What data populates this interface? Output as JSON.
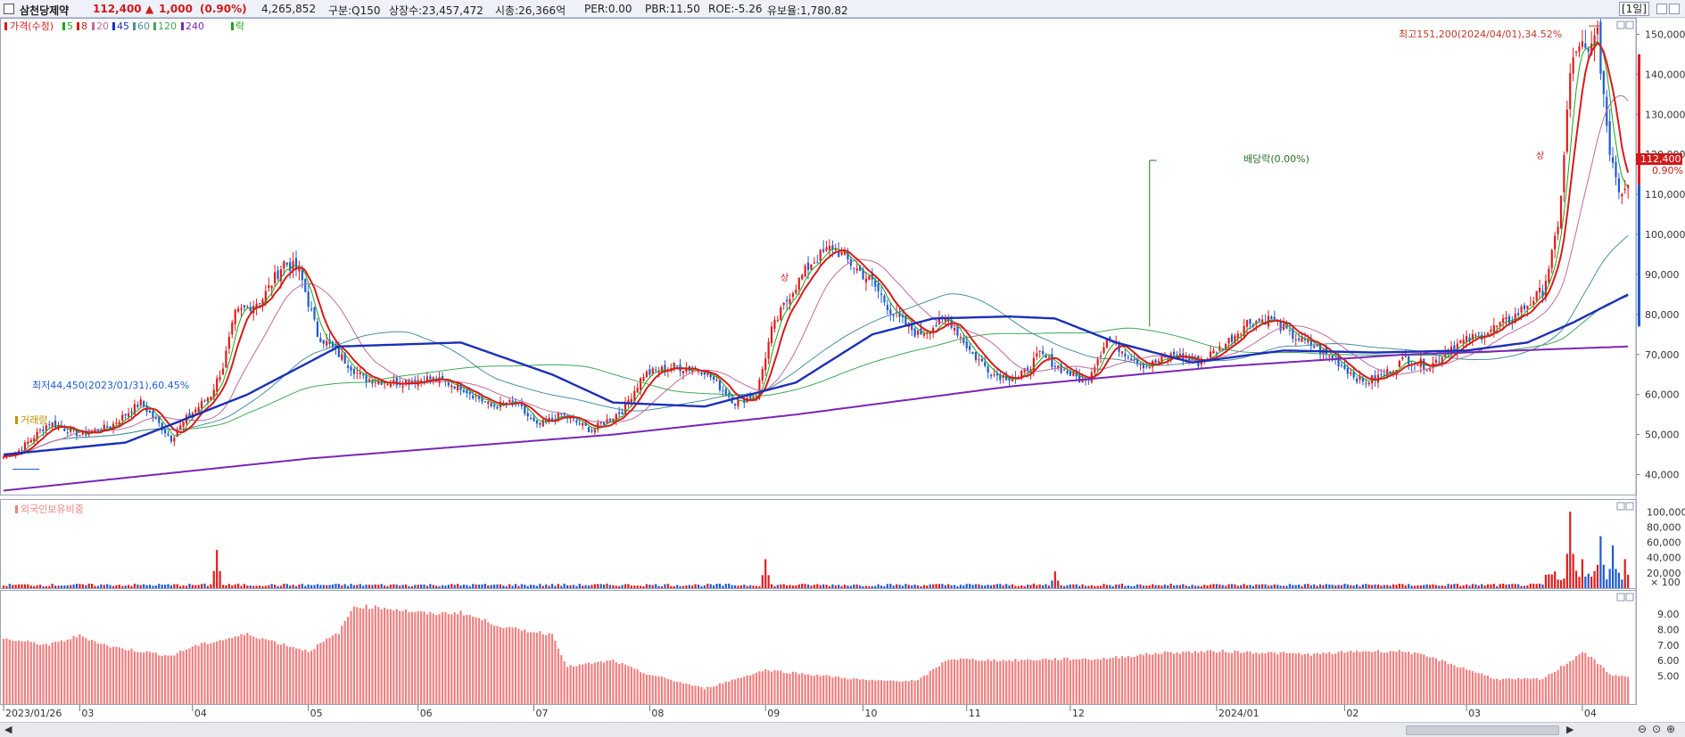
{
  "header": {
    "stock_name": "삼천당제약",
    "price": "112,400",
    "change_arrow": "▲",
    "change": "1,000",
    "change_pct": "(0.90%)",
    "volume": "4,265,852",
    "market": "구분:Q150",
    "shares": "상장수:23,457,472",
    "cap": "시총:26,366억",
    "per": "PER:0.00",
    "pbr": "PBR:11.50",
    "roe": "ROE:-5.26",
    "reserve": "유보율:1,780.82",
    "period": "[1일]"
  },
  "legend": {
    "price": "가격(수정)",
    "ma5": "5",
    "ma8": "8",
    "ma20": "20",
    "ma45": "45",
    "ma60": "60",
    "ma120": "120",
    "ma240": "240",
    "ex": "락",
    "volume": "거래량",
    "foreign": "외국인보유비중"
  },
  "annotations": {
    "high": "최고151,200(2024/04/01),34.52%",
    "low": "최저44,450(2023/01/31),60.45%",
    "dividend": "배당락(0.00%)",
    "limit_up": "상",
    "last_price": "112,400",
    "last_pct": "0.90%"
  },
  "colors": {
    "up": "#e21b1b",
    "down": "#1e5bd4",
    "ma5": "#1aa61a",
    "ma8": "#d81b1b",
    "ma20": "#c06a9e",
    "ma45": "#1b2fb8",
    "ma60": "#4b8fa0",
    "ma120": "#3ea85a",
    "ma240": "#7b26b5",
    "foreign_bar": "#f08080"
  },
  "chart_data": [
    {
      "type": "candlestick",
      "title": "",
      "y_ticks": [
        40000,
        50000,
        60000,
        70000,
        80000,
        90000,
        100000,
        110000,
        120000,
        130000,
        140000,
        150000
      ],
      "y_tick_labels": [
        "40,000",
        "50,000",
        "60,000",
        "70,000",
        "80,000",
        "90,000",
        "100,000",
        "110,000",
        "120,000",
        "130,000",
        "140,000",
        "150,000"
      ],
      "ylim": [
        35000,
        153000
      ],
      "x_labels": [
        "2023/01/26",
        "03",
        "04",
        "05",
        "06",
        "07",
        "08",
        "09",
        "10",
        "11",
        "12",
        "2024/01",
        "02",
        "03",
        "04"
      ],
      "x_label_days": [
        0,
        25,
        62,
        100,
        136,
        174,
        212,
        250,
        282,
        316,
        350,
        398,
        440,
        480,
        518
      ],
      "total_days": 535,
      "price_path": [
        [
          0,
          44500
        ],
        [
          5,
          46000
        ],
        [
          15,
          53000
        ],
        [
          25,
          50000
        ],
        [
          35,
          52000
        ],
        [
          45,
          58000
        ],
        [
          55,
          49000
        ],
        [
          60,
          54000
        ],
        [
          68,
          60000
        ],
        [
          72,
          67000
        ],
        [
          76,
          80000
        ],
        [
          85,
          84000
        ],
        [
          92,
          93000
        ],
        [
          97,
          91000
        ],
        [
          103,
          75000
        ],
        [
          110,
          70000
        ],
        [
          118,
          64000
        ],
        [
          128,
          63000
        ],
        [
          140,
          64000
        ],
        [
          150,
          62000
        ],
        [
          160,
          57000
        ],
        [
          168,
          58000
        ],
        [
          175,
          52000
        ],
        [
          183,
          55000
        ],
        [
          193,
          51000
        ],
        [
          203,
          56000
        ],
        [
          210,
          65000
        ],
        [
          220,
          67000
        ],
        [
          230,
          66000
        ],
        [
          240,
          58000
        ],
        [
          247,
          60000
        ],
        [
          252,
          76000
        ],
        [
          258,
          85000
        ],
        [
          265,
          93000
        ],
        [
          272,
          97000
        ],
        [
          279,
          92000
        ],
        [
          285,
          88000
        ],
        [
          292,
          80000
        ],
        [
          300,
          75000
        ],
        [
          310,
          79000
        ],
        [
          318,
          70000
        ],
        [
          325,
          65000
        ],
        [
          333,
          64000
        ],
        [
          340,
          70000
        ],
        [
          348,
          66000
        ],
        [
          355,
          63000
        ],
        [
          362,
          74000
        ],
        [
          369,
          70000
        ],
        [
          375,
          67000
        ],
        [
          384,
          70000
        ],
        [
          392,
          68000
        ],
        [
          400,
          72000
        ],
        [
          408,
          78000
        ],
        [
          416,
          79000
        ],
        [
          422,
          75000
        ],
        [
          430,
          72000
        ],
        [
          438,
          68000
        ],
        [
          446,
          63000
        ],
        [
          453,
          65000
        ],
        [
          460,
          69000
        ],
        [
          468,
          67000
        ],
        [
          475,
          72000
        ],
        [
          485,
          75000
        ],
        [
          495,
          79000
        ],
        [
          505,
          86000
        ],
        [
          510,
          101000
        ],
        [
          514,
          140000
        ],
        [
          517,
          148000
        ],
        [
          520,
          144000
        ],
        [
          523,
          151200
        ],
        [
          526,
          125000
        ],
        [
          530,
          111000
        ],
        [
          533,
          112400
        ]
      ],
      "ma45_path": [
        [
          0,
          45000
        ],
        [
          40,
          48000
        ],
        [
          80,
          60000
        ],
        [
          110,
          72000
        ],
        [
          150,
          73000
        ],
        [
          180,
          65000
        ],
        [
          200,
          58000
        ],
        [
          230,
          57000
        ],
        [
          260,
          63000
        ],
        [
          285,
          75000
        ],
        [
          305,
          79000
        ],
        [
          330,
          79500
        ],
        [
          345,
          79000
        ],
        [
          365,
          73000
        ],
        [
          390,
          68000
        ],
        [
          420,
          71000
        ],
        [
          450,
          70500
        ],
        [
          480,
          71000
        ],
        [
          500,
          73000
        ],
        [
          515,
          78000
        ],
        [
          533,
          85000
        ]
      ],
      "ma240_path": [
        [
          0,
          36000
        ],
        [
          100,
          44000
        ],
        [
          200,
          50000
        ],
        [
          260,
          55000
        ],
        [
          330,
          62000
        ],
        [
          400,
          67000
        ],
        [
          460,
          70000
        ],
        [
          533,
          72000
        ]
      ],
      "high": {
        "day": 523,
        "value": 151200,
        "date": "2024/04/01",
        "pct": 34.52
      },
      "low": {
        "day": 3,
        "value": 44450,
        "date": "2023/01/31",
        "pct": 60.45
      },
      "last": {
        "value": 112400,
        "change": 1000,
        "change_pct": 0.9
      }
    },
    {
      "type": "bar",
      "title": "거래량",
      "y_ticks": [
        20000,
        40000,
        60000,
        80000,
        100000
      ],
      "y_tick_labels": [
        "20,000",
        "40,000",
        "60,000",
        "80,000",
        "100,000"
      ],
      "unit": "× 100",
      "ylim": [
        0,
        105000
      ],
      "spikes": [
        [
          70,
          50000
        ],
        [
          250,
          38000
        ],
        [
          345,
          22000
        ],
        [
          514,
          100000
        ],
        [
          518,
          38000
        ],
        [
          524,
          68000
        ],
        [
          528,
          56000
        ],
        [
          532,
          38000
        ]
      ]
    },
    {
      "type": "bar",
      "title": "외국인보유비중",
      "y_ticks": [
        5,
        6,
        7,
        8,
        9
      ],
      "y_tick_labels": [
        "5.00",
        "6.00",
        "7.00",
        "8.00",
        "9.00"
      ],
      "ylim": [
        3.2,
        10.2
      ],
      "profile": [
        [
          0,
          7.4
        ],
        [
          15,
          7.0
        ],
        [
          25,
          7.6
        ],
        [
          35,
          6.9
        ],
        [
          55,
          6.3
        ],
        [
          62,
          6.9
        ],
        [
          80,
          7.7
        ],
        [
          100,
          6.6
        ],
        [
          110,
          7.8
        ],
        [
          115,
          9.5
        ],
        [
          125,
          9.4
        ],
        [
          140,
          9.0
        ],
        [
          150,
          9.1
        ],
        [
          165,
          8.1
        ],
        [
          180,
          7.7
        ],
        [
          185,
          5.6
        ],
        [
          200,
          6.0
        ],
        [
          210,
          5.2
        ],
        [
          230,
          4.2
        ],
        [
          250,
          5.4
        ],
        [
          270,
          5.0
        ],
        [
          285,
          4.7
        ],
        [
          300,
          4.7
        ],
        [
          310,
          6.1
        ],
        [
          330,
          6.0
        ],
        [
          345,
          6.1
        ],
        [
          360,
          6.1
        ],
        [
          380,
          6.5
        ],
        [
          400,
          6.6
        ],
        [
          430,
          6.4
        ],
        [
          445,
          6.6
        ],
        [
          460,
          6.6
        ],
        [
          470,
          6.1
        ],
        [
          490,
          4.8
        ],
        [
          505,
          4.8
        ],
        [
          515,
          6.1
        ],
        [
          518,
          6.6
        ],
        [
          522,
          6.0
        ],
        [
          528,
          5.0
        ],
        [
          533,
          5.0
        ]
      ]
    }
  ]
}
